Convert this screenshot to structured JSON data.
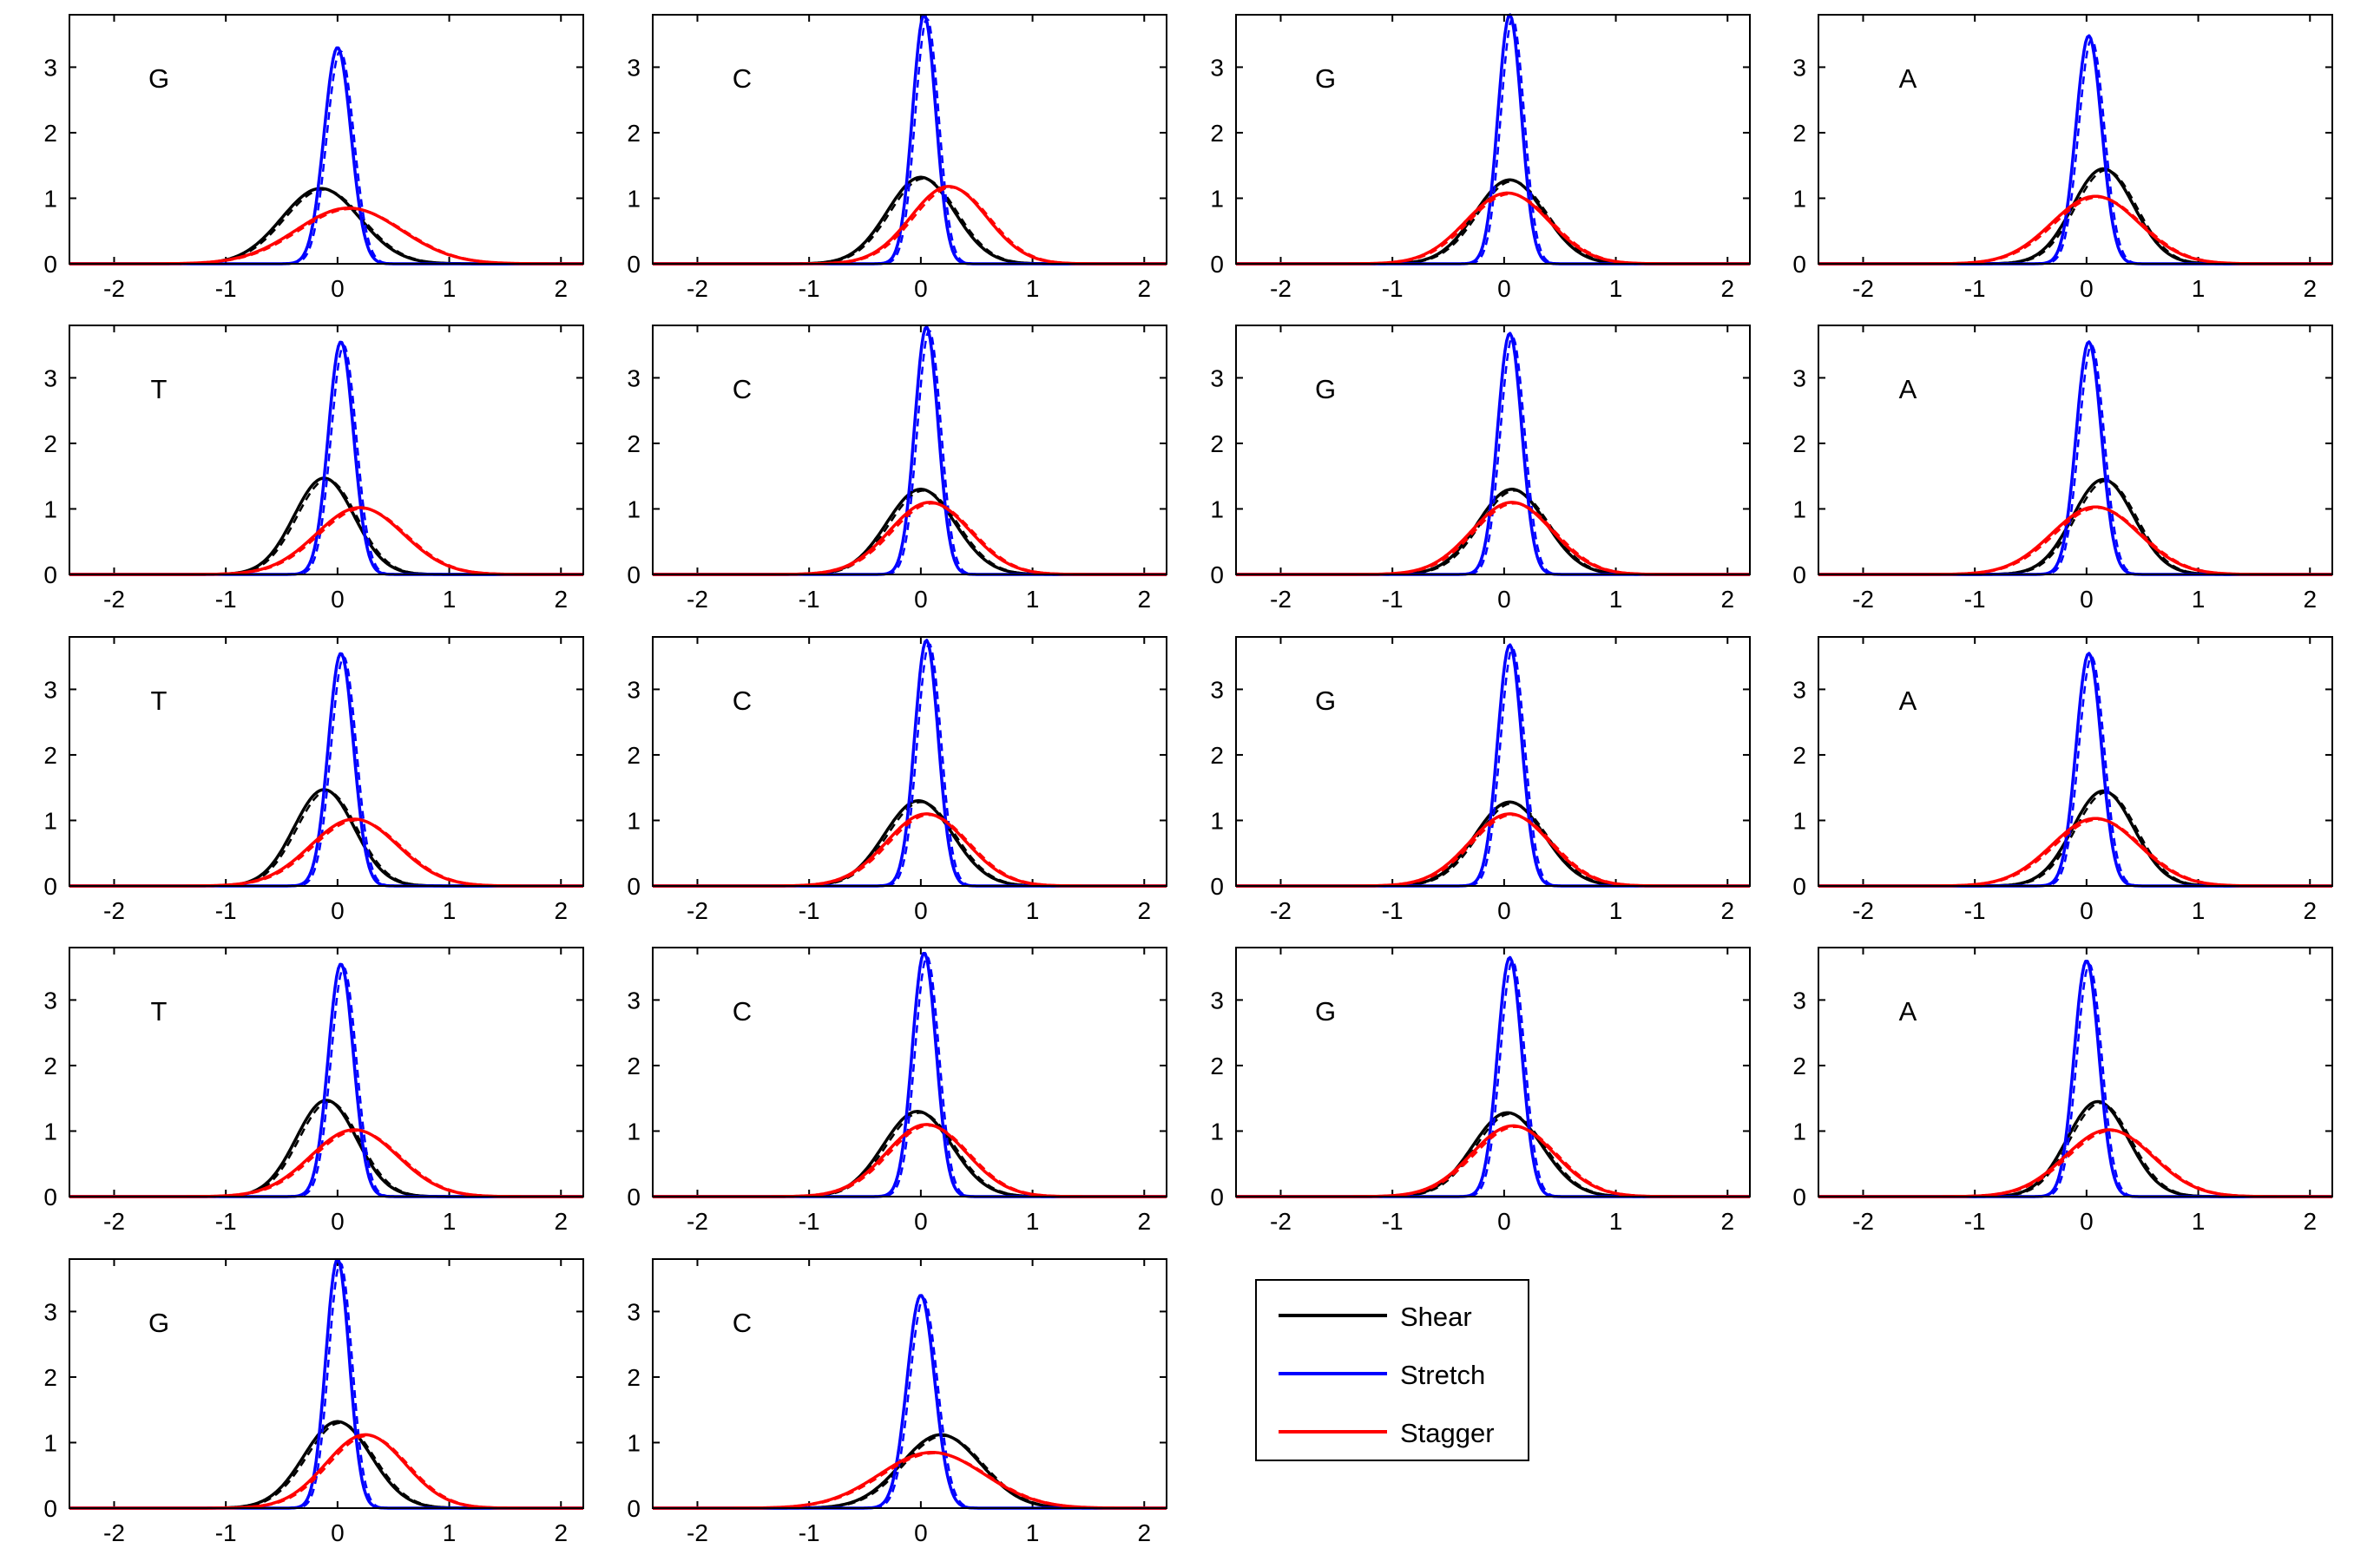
{
  "figure": {
    "legend": {
      "entries": [
        {
          "label": "Shear",
          "color": "#000000"
        },
        {
          "label": "Stretch",
          "color": "#0000ff"
        },
        {
          "label": "Stagger",
          "color": "#ff0000"
        }
      ],
      "placement": "row-5, column-3"
    }
  },
  "chart_data": [
    {
      "type": "line",
      "label": "G",
      "xlim": [
        -2.4,
        2.2
      ],
      "ylim": [
        0,
        3.8
      ],
      "xticks": [
        -2,
        -1,
        0,
        1,
        2
      ],
      "yticks": [
        0,
        1,
        2,
        3
      ],
      "series": [
        {
          "name": "Shear",
          "mu": -0.15,
          "peak": 1.15,
          "sigma": 0.35
        },
        {
          "name": "Stretch",
          "mu": 0.0,
          "peak": 3.3,
          "sigma": 0.12
        },
        {
          "name": "Stagger",
          "mu": 0.1,
          "peak": 0.85,
          "sigma": 0.47
        }
      ]
    },
    {
      "type": "line",
      "label": "C",
      "xlim": [
        -2.4,
        2.2
      ],
      "ylim": [
        0,
        3.8
      ],
      "xticks": [
        -2,
        -1,
        0,
        1,
        2
      ],
      "yticks": [
        0,
        1,
        2,
        3
      ],
      "series": [
        {
          "name": "Shear",
          "mu": 0.0,
          "peak": 1.32,
          "sigma": 0.3
        },
        {
          "name": "Stretch",
          "mu": 0.03,
          "peak": 3.8,
          "sigma": 0.105
        },
        {
          "name": "Stagger",
          "mu": 0.25,
          "peak": 1.18,
          "sigma": 0.34
        }
      ]
    },
    {
      "type": "line",
      "label": "G",
      "xlim": [
        -2.4,
        2.2
      ],
      "ylim": [
        0,
        3.8
      ],
      "xticks": [
        -2,
        -1,
        0,
        1,
        2
      ],
      "yticks": [
        0,
        1,
        2,
        3
      ],
      "series": [
        {
          "name": "Shear",
          "mu": 0.05,
          "peak": 1.28,
          "sigma": 0.31
        },
        {
          "name": "Stretch",
          "mu": 0.05,
          "peak": 3.8,
          "sigma": 0.105
        },
        {
          "name": "Stagger",
          "mu": 0.03,
          "peak": 1.08,
          "sigma": 0.37
        }
      ]
    },
    {
      "type": "line",
      "label": "A",
      "xlim": [
        -2.4,
        2.2
      ],
      "ylim": [
        0,
        3.8
      ],
      "xticks": [
        -2,
        -1,
        0,
        1,
        2
      ],
      "yticks": [
        0,
        1,
        2,
        3
      ],
      "series": [
        {
          "name": "Shear",
          "mu": 0.15,
          "peak": 1.45,
          "sigma": 0.275
        },
        {
          "name": "Stretch",
          "mu": 0.02,
          "peak": 3.48,
          "sigma": 0.115
        },
        {
          "name": "Stagger",
          "mu": 0.08,
          "peak": 1.03,
          "sigma": 0.39
        }
      ]
    },
    {
      "type": "line",
      "label": "T",
      "xlim": [
        -2.4,
        2.2
      ],
      "ylim": [
        0,
        3.8
      ],
      "xticks": [
        -2,
        -1,
        0,
        1,
        2
      ],
      "yticks": [
        0,
        1,
        2,
        3
      ],
      "series": [
        {
          "name": "Shear",
          "mu": -0.12,
          "peak": 1.47,
          "sigma": 0.27
        },
        {
          "name": "Stretch",
          "mu": 0.03,
          "peak": 3.55,
          "sigma": 0.113
        },
        {
          "name": "Stagger",
          "mu": 0.2,
          "peak": 1.02,
          "sigma": 0.39
        }
      ]
    },
    {
      "type": "line",
      "label": "C",
      "xlim": [
        -2.4,
        2.2
      ],
      "ylim": [
        0,
        3.8
      ],
      "xticks": [
        -2,
        -1,
        0,
        1,
        2
      ],
      "yticks": [
        0,
        1,
        2,
        3
      ],
      "series": [
        {
          "name": "Shear",
          "mu": 0.0,
          "peak": 1.3,
          "sigma": 0.305
        },
        {
          "name": "Stretch",
          "mu": 0.05,
          "peak": 3.78,
          "sigma": 0.105
        },
        {
          "name": "Stagger",
          "mu": 0.08,
          "peak": 1.1,
          "sigma": 0.36
        }
      ]
    },
    {
      "type": "line",
      "label": "G",
      "xlim": [
        -2.4,
        2.2
      ],
      "ylim": [
        0,
        3.8
      ],
      "xticks": [
        -2,
        -1,
        0,
        1,
        2
      ],
      "yticks": [
        0,
        1,
        2,
        3
      ],
      "series": [
        {
          "name": "Shear",
          "mu": 0.07,
          "peak": 1.3,
          "sigma": 0.305
        },
        {
          "name": "Stretch",
          "mu": 0.05,
          "peak": 3.68,
          "sigma": 0.108
        },
        {
          "name": "Stagger",
          "mu": 0.07,
          "peak": 1.1,
          "sigma": 0.36
        }
      ]
    },
    {
      "type": "line",
      "label": "A",
      "xlim": [
        -2.4,
        2.2
      ],
      "ylim": [
        0,
        3.8
      ],
      "xticks": [
        -2,
        -1,
        0,
        1,
        2
      ],
      "yticks": [
        0,
        1,
        2,
        3
      ],
      "series": [
        {
          "name": "Shear",
          "mu": 0.15,
          "peak": 1.45,
          "sigma": 0.275
        },
        {
          "name": "Stretch",
          "mu": 0.02,
          "peak": 3.55,
          "sigma": 0.113
        },
        {
          "name": "Stagger",
          "mu": 0.08,
          "peak": 1.03,
          "sigma": 0.39
        }
      ]
    },
    {
      "type": "line",
      "label": "T",
      "xlim": [
        -2.4,
        2.2
      ],
      "ylim": [
        0,
        3.8
      ],
      "xticks": [
        -2,
        -1,
        0,
        1,
        2
      ],
      "yticks": [
        0,
        1,
        2,
        3
      ],
      "series": [
        {
          "name": "Shear",
          "mu": -0.12,
          "peak": 1.47,
          "sigma": 0.27
        },
        {
          "name": "Stretch",
          "mu": 0.03,
          "peak": 3.55,
          "sigma": 0.113
        },
        {
          "name": "Stagger",
          "mu": 0.15,
          "peak": 1.02,
          "sigma": 0.39
        }
      ]
    },
    {
      "type": "line",
      "label": "C",
      "xlim": [
        -2.4,
        2.2
      ],
      "ylim": [
        0,
        3.8
      ],
      "xticks": [
        -2,
        -1,
        0,
        1,
        2
      ],
      "yticks": [
        0,
        1,
        2,
        3
      ],
      "series": [
        {
          "name": "Shear",
          "mu": -0.02,
          "peak": 1.3,
          "sigma": 0.305
        },
        {
          "name": "Stretch",
          "mu": 0.05,
          "peak": 3.75,
          "sigma": 0.106
        },
        {
          "name": "Stagger",
          "mu": 0.05,
          "peak": 1.1,
          "sigma": 0.36
        }
      ]
    },
    {
      "type": "line",
      "label": "G",
      "xlim": [
        -2.4,
        2.2
      ],
      "ylim": [
        0,
        3.8
      ],
      "xticks": [
        -2,
        -1,
        0,
        1,
        2
      ],
      "yticks": [
        0,
        1,
        2,
        3
      ],
      "series": [
        {
          "name": "Shear",
          "mu": 0.05,
          "peak": 1.28,
          "sigma": 0.31
        },
        {
          "name": "Stretch",
          "mu": 0.05,
          "peak": 3.68,
          "sigma": 0.108
        },
        {
          "name": "Stagger",
          "mu": 0.05,
          "peak": 1.1,
          "sigma": 0.36
        }
      ]
    },
    {
      "type": "line",
      "label": "A",
      "xlim": [
        -2.4,
        2.2
      ],
      "ylim": [
        0,
        3.8
      ],
      "xticks": [
        -2,
        -1,
        0,
        1,
        2
      ],
      "yticks": [
        0,
        1,
        2,
        3
      ],
      "series": [
        {
          "name": "Shear",
          "mu": 0.15,
          "peak": 1.45,
          "sigma": 0.275
        },
        {
          "name": "Stretch",
          "mu": 0.02,
          "peak": 3.55,
          "sigma": 0.113
        },
        {
          "name": "Stagger",
          "mu": 0.08,
          "peak": 1.03,
          "sigma": 0.39
        }
      ]
    },
    {
      "type": "line",
      "label": "T",
      "xlim": [
        -2.4,
        2.2
      ],
      "ylim": [
        0,
        3.8
      ],
      "xticks": [
        -2,
        -1,
        0,
        1,
        2
      ],
      "yticks": [
        0,
        1,
        2,
        3
      ],
      "series": [
        {
          "name": "Shear",
          "mu": -0.1,
          "peak": 1.47,
          "sigma": 0.27
        },
        {
          "name": "Stretch",
          "mu": 0.03,
          "peak": 3.55,
          "sigma": 0.113
        },
        {
          "name": "Stagger",
          "mu": 0.15,
          "peak": 1.02,
          "sigma": 0.39
        }
      ]
    },
    {
      "type": "line",
      "label": "C",
      "xlim": [
        -2.4,
        2.2
      ],
      "ylim": [
        0,
        3.8
      ],
      "xticks": [
        -2,
        -1,
        0,
        1,
        2
      ],
      "yticks": [
        0,
        1,
        2,
        3
      ],
      "series": [
        {
          "name": "Shear",
          "mu": -0.03,
          "peak": 1.3,
          "sigma": 0.305
        },
        {
          "name": "Stretch",
          "mu": 0.03,
          "peak": 3.72,
          "sigma": 0.107
        },
        {
          "name": "Stagger",
          "mu": 0.05,
          "peak": 1.1,
          "sigma": 0.36
        }
      ]
    },
    {
      "type": "line",
      "label": "G",
      "xlim": [
        -2.4,
        2.2
      ],
      "ylim": [
        0,
        3.8
      ],
      "xticks": [
        -2,
        -1,
        0,
        1,
        2
      ],
      "yticks": [
        0,
        1,
        2,
        3
      ],
      "series": [
        {
          "name": "Shear",
          "mu": 0.03,
          "peak": 1.28,
          "sigma": 0.31
        },
        {
          "name": "Stretch",
          "mu": 0.05,
          "peak": 3.65,
          "sigma": 0.109
        },
        {
          "name": "Stagger",
          "mu": 0.08,
          "peak": 1.08,
          "sigma": 0.37
        }
      ]
    },
    {
      "type": "line",
      "label": "A",
      "xlim": [
        -2.4,
        2.2
      ],
      "ylim": [
        0,
        3.8
      ],
      "xticks": [
        -2,
        -1,
        0,
        1,
        2
      ],
      "yticks": [
        0,
        1,
        2,
        3
      ],
      "series": [
        {
          "name": "Shear",
          "mu": 0.1,
          "peak": 1.45,
          "sigma": 0.275
        },
        {
          "name": "Stretch",
          "mu": 0.0,
          "peak": 3.6,
          "sigma": 0.111
        },
        {
          "name": "Stagger",
          "mu": 0.2,
          "peak": 1.02,
          "sigma": 0.39
        }
      ]
    },
    {
      "type": "line",
      "label": "G",
      "xlim": [
        -2.4,
        2.2
      ],
      "ylim": [
        0,
        3.8
      ],
      "xticks": [
        -2,
        -1,
        0,
        1,
        2
      ],
      "yticks": [
        0,
        1,
        2,
        3
      ],
      "series": [
        {
          "name": "Shear",
          "mu": 0.0,
          "peak": 1.32,
          "sigma": 0.3
        },
        {
          "name": "Stretch",
          "mu": 0.0,
          "peak": 3.8,
          "sigma": 0.105
        },
        {
          "name": "Stagger",
          "mu": 0.25,
          "peak": 1.12,
          "sigma": 0.355
        }
      ]
    },
    {
      "type": "line",
      "label": "C",
      "xlim": [
        -2.4,
        2.2
      ],
      "ylim": [
        0,
        3.8
      ],
      "xticks": [
        -2,
        -1,
        0,
        1,
        2
      ],
      "yticks": [
        0,
        1,
        2,
        3
      ],
      "series": [
        {
          "name": "Shear",
          "mu": 0.18,
          "peak": 1.12,
          "sigma": 0.355
        },
        {
          "name": "Stretch",
          "mu": 0.0,
          "peak": 3.25,
          "sigma": 0.123
        },
        {
          "name": "Stagger",
          "mu": 0.1,
          "peak": 0.85,
          "sigma": 0.47
        }
      ]
    }
  ]
}
